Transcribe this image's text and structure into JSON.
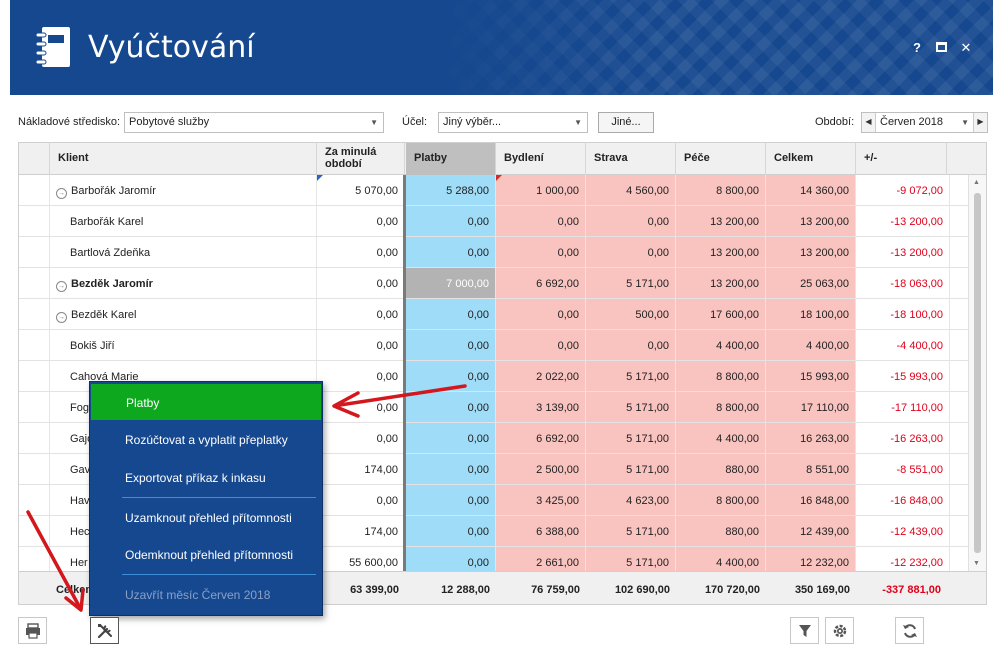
{
  "app": {
    "title": "Vyúčtování",
    "help_label": "?",
    "close_label": "✕"
  },
  "filters": {
    "cost_center_label": "Nákladové středisko:",
    "cost_center_value": "Pobytové služby",
    "purpose_label": "Účel:",
    "purpose_value": "Jiný výběr...",
    "other_button": "Jiné...",
    "period_label": "Období:",
    "period_value": "Červen 2018"
  },
  "columns": {
    "client": "Klient",
    "prev_line1": "Za minulá",
    "prev_line2": "období",
    "payments": "Platby",
    "housing": "Bydlení",
    "food": "Strava",
    "care": "Péče",
    "total": "Celkem",
    "diff": "+/-"
  },
  "rows": [
    {
      "name": "Barbořák Jaromír",
      "prev": "5 070,00",
      "pay": "5 288,00",
      "house": "1 000,00",
      "food": "4 560,00",
      "care": "8 800,00",
      "total": "14 360,00",
      "diff": "-9 072,00"
    },
    {
      "name": "Barbořák Karel",
      "prev": "0,00",
      "pay": "0,00",
      "house": "0,00",
      "food": "0,00",
      "care": "13 200,00",
      "total": "13 200,00",
      "diff": "-13 200,00"
    },
    {
      "name": "Bartlová Zdeňka",
      "prev": "0,00",
      "pay": "0,00",
      "house": "0,00",
      "food": "0,00",
      "care": "13 200,00",
      "total": "13 200,00",
      "diff": "-13 200,00"
    },
    {
      "name": "Bezděk Jaromír",
      "prev": "0,00",
      "pay": "7 000,00",
      "house": "6 692,00",
      "food": "5 171,00",
      "care": "13 200,00",
      "total": "25 063,00",
      "diff": "-18 063,00"
    },
    {
      "name": "Bezděk Karel",
      "prev": "0,00",
      "pay": "0,00",
      "house": "0,00",
      "food": "500,00",
      "care": "17 600,00",
      "total": "18 100,00",
      "diff": "-18 100,00"
    },
    {
      "name": "Bokiš Jiří",
      "prev": "0,00",
      "pay": "0,00",
      "house": "0,00",
      "food": "0,00",
      "care": "4 400,00",
      "total": "4 400,00",
      "diff": "-4 400,00"
    },
    {
      "name": "Cahová Marie",
      "prev": "0,00",
      "pay": "0,00",
      "house": "2 022,00",
      "food": "5 171,00",
      "care": "8 800,00",
      "total": "15 993,00",
      "diff": "-15 993,00"
    },
    {
      "name": "Fog",
      "prev": "0,00",
      "pay": "0,00",
      "house": "3 139,00",
      "food": "5 171,00",
      "care": "8 800,00",
      "total": "17 110,00",
      "diff": "-17 110,00"
    },
    {
      "name": "Gajo",
      "prev": "0,00",
      "pay": "0,00",
      "house": "6 692,00",
      "food": "5 171,00",
      "care": "4 400,00",
      "total": "16 263,00",
      "diff": "-16 263,00"
    },
    {
      "name": "Gav",
      "prev": "174,00",
      "pay": "0,00",
      "house": "2 500,00",
      "food": "5 171,00",
      "care": "880,00",
      "total": "8 551,00",
      "diff": "-8 551,00"
    },
    {
      "name": "Hav",
      "prev": "0,00",
      "pay": "0,00",
      "house": "3 425,00",
      "food": "4 623,00",
      "care": "8 800,00",
      "total": "16 848,00",
      "diff": "-16 848,00"
    },
    {
      "name": "Hec",
      "prev": "174,00",
      "pay": "0,00",
      "house": "6 388,00",
      "food": "5 171,00",
      "care": "880,00",
      "total": "12 439,00",
      "diff": "-12 439,00"
    },
    {
      "name": "Her",
      "prev": "55 600,00",
      "pay": "0,00",
      "house": "2 661,00",
      "food": "5 171,00",
      "care": "4 400,00",
      "total": "12 232,00",
      "diff": "-12 232,00"
    }
  ],
  "totals": {
    "label": "Celkem",
    "prev": "63 399,00",
    "pay": "12 288,00",
    "house": "76 759,00",
    "food": "102 690,00",
    "care": "170 720,00",
    "total": "350 169,00",
    "diff": "-337 881,00"
  },
  "menu": {
    "items": [
      "Platby",
      "Rozúčtovat a vyplatit přeplatky",
      "Exportovat příkaz k inkasu",
      "Uzamknout přehled přítomnosti",
      "Odemknout přehled přítomnosti",
      "Uzavřít měsíc Červen 2018"
    ]
  },
  "colors": {
    "header_bg": "#16488f",
    "menu_highlight": "#0ea81f",
    "payments_col": "#9fdcf7",
    "charges_col": "#f9c3c0",
    "negative_text": "#e0001a",
    "annotation_arrow": "#d4161d"
  },
  "icons": [
    "notebook-icon",
    "help-icon",
    "maximize-icon",
    "close-icon",
    "print-icon",
    "tools-icon",
    "filter-icon",
    "settings-icon",
    "refresh-icon"
  ]
}
